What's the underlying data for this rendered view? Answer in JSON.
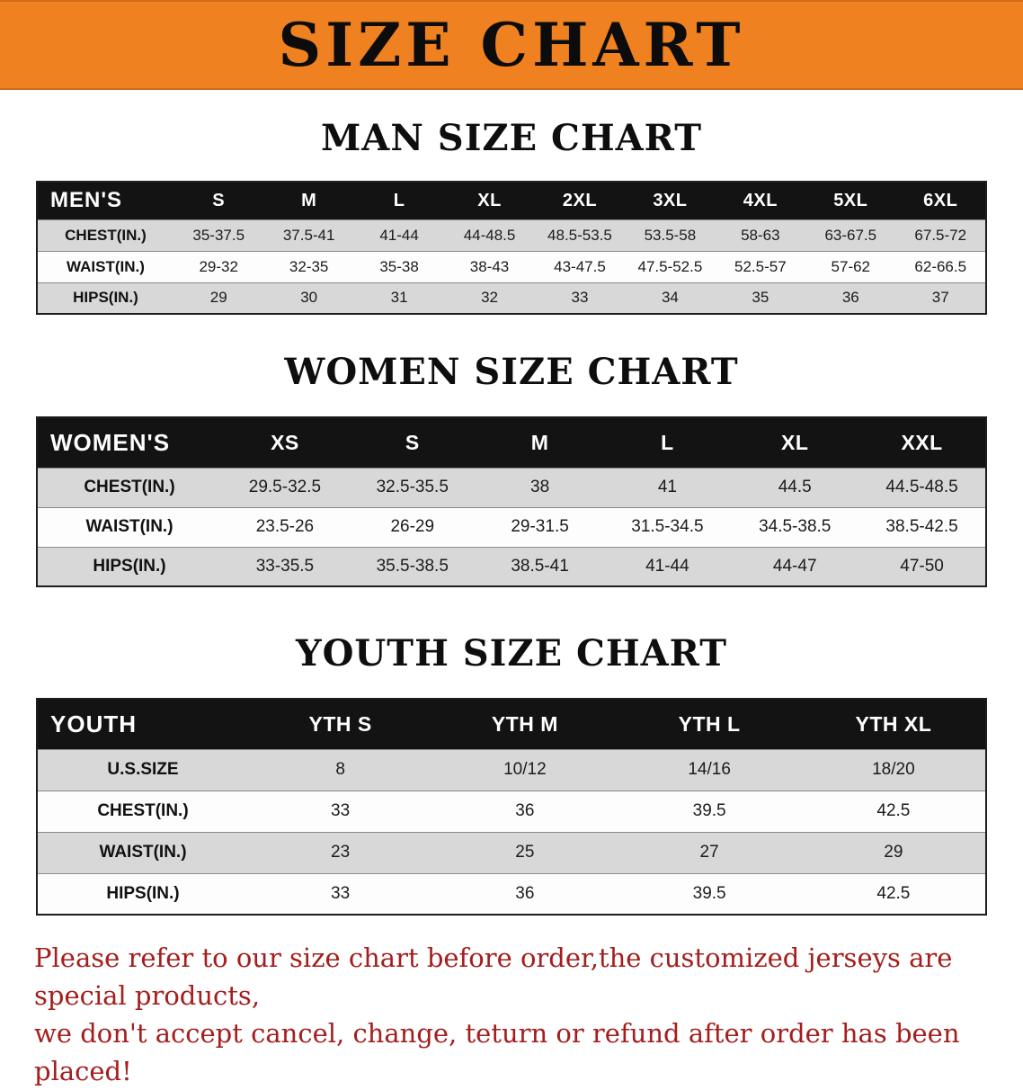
{
  "banner": {
    "title": "SIZE CHART"
  },
  "men": {
    "heading": "MAN SIZE CHART",
    "table": {
      "label": "MEN'S",
      "columns": [
        "S",
        "M",
        "L",
        "XL",
        "2XL",
        "3XL",
        "4XL",
        "5XL",
        "6XL"
      ],
      "rows": [
        {
          "label": "CHEST(IN.)",
          "values": [
            "35-37.5",
            "37.5-41",
            "41-44",
            "44-48.5",
            "48.5-53.5",
            "53.5-58",
            "58-63",
            "63-67.5",
            "67.5-72"
          ]
        },
        {
          "label": "WAIST(IN.)",
          "values": [
            "29-32",
            "32-35",
            "35-38",
            "38-43",
            "43-47.5",
            "47.5-52.5",
            "52.5-57",
            "57-62",
            "62-66.5"
          ]
        },
        {
          "label": "HIPS(IN.)",
          "values": [
            "29",
            "30",
            "31",
            "32",
            "33",
            "34",
            "35",
            "36",
            "37"
          ]
        }
      ]
    }
  },
  "women": {
    "heading": "WOMEN SIZE CHART",
    "table": {
      "label": "WOMEN'S",
      "columns": [
        "XS",
        "S",
        "M",
        "L",
        "XL",
        "XXL"
      ],
      "rows": [
        {
          "label": "CHEST(IN.)",
          "values": [
            "29.5-32.5",
            "32.5-35.5",
            "38",
            "41",
            "44.5",
            "44.5-48.5"
          ]
        },
        {
          "label": "WAIST(IN.)",
          "values": [
            "23.5-26",
            "26-29",
            "29-31.5",
            "31.5-34.5",
            "34.5-38.5",
            "38.5-42.5"
          ]
        },
        {
          "label": "HIPS(IN.)",
          "values": [
            "33-35.5",
            "35.5-38.5",
            "38.5-41",
            "41-44",
            "44-47",
            "47-50"
          ]
        }
      ]
    }
  },
  "youth": {
    "heading": "YOUTH SIZE CHART",
    "table": {
      "label": "YOUTH",
      "columns": [
        "YTH S",
        "YTH M",
        "YTH L",
        "YTH XL"
      ],
      "rows": [
        {
          "label": "U.S.SIZE",
          "values": [
            "8",
            "10/12",
            "14/16",
            "18/20"
          ]
        },
        {
          "label": "CHEST(IN.)",
          "values": [
            "33",
            "36",
            "39.5",
            "42.5"
          ]
        },
        {
          "label": "WAIST(IN.)",
          "values": [
            "23",
            "25",
            "27",
            "29"
          ]
        },
        {
          "label": "HIPS(IN.)",
          "values": [
            "33",
            "36",
            "39.5",
            "42.5"
          ]
        }
      ]
    }
  },
  "footer": {
    "line1": "Please refer to our size chart before order,the customized jerseys are special products,",
    "line2": "we don't accept cancel, change, teturn or refund after order has been placed!"
  },
  "colors": {
    "banner_bg": "#ef8120",
    "table_header_bg": "#131313",
    "row_alt_bg": "#d8d8d8",
    "footer_text": "#a51d1d"
  }
}
